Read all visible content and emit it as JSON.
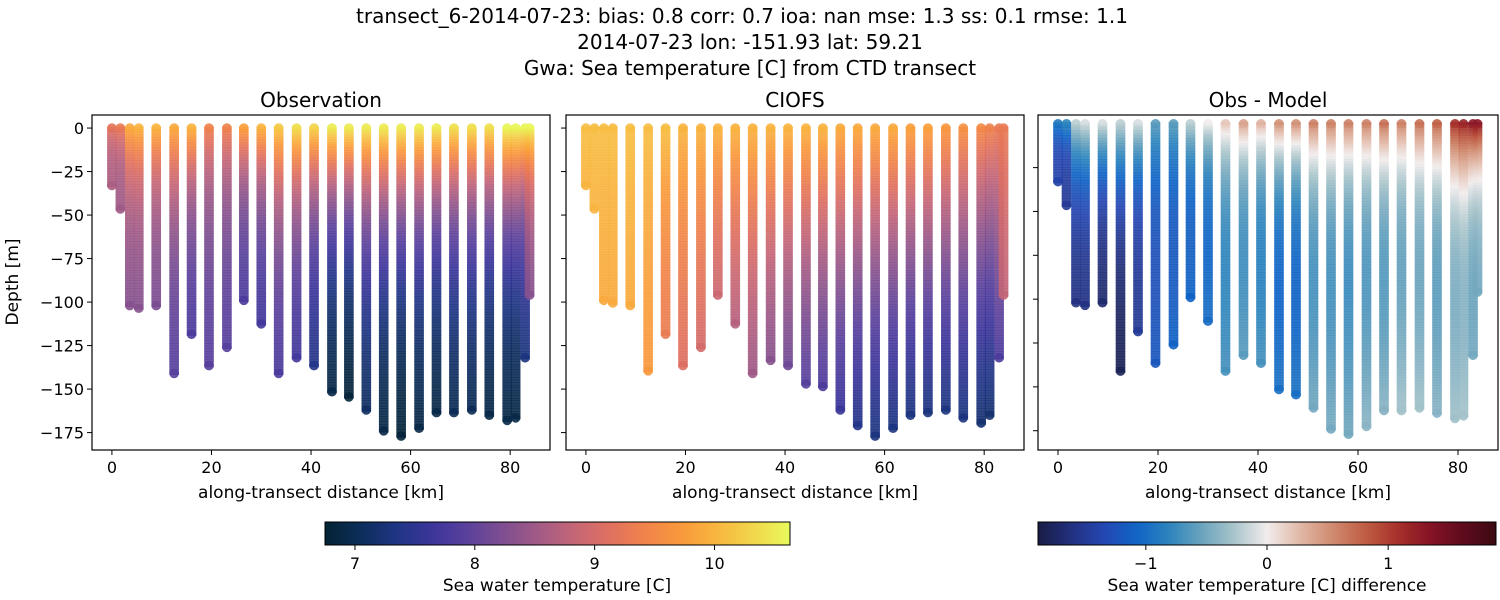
{
  "title_lines": [
    "transect_6-2014-07-23: bias: 0.8  corr: 0.7  ioa: nan  mse: 1.3  ss: 0.1  rmse: 1.1",
    "2014-07-23 lon: -151.93 lat: 59.21",
    "Gwa: Sea temperature [C] from CTD transect"
  ],
  "chart_data": [
    {
      "type": "scatter",
      "title": "Observation",
      "xlabel": "along-transect distance [km]",
      "ylabel": "Depth [m]",
      "xlim": [
        -4,
        88
      ],
      "ylim": [
        -185,
        7.5
      ],
      "xticks": [
        0,
        20,
        40,
        60,
        80
      ],
      "yticks": [
        0,
        -25,
        -50,
        -75,
        -100,
        -125,
        -150,
        -175
      ],
      "ytick_labels_shown": true,
      "colormap": "thermal",
      "color_range": [
        6.75,
        10.63
      ],
      "stations_km": [
        0,
        1.7,
        3.6,
        5.4,
        8.9,
        12.5,
        16,
        19.5,
        23.1,
        26.5,
        30,
        33.5,
        37.1,
        40.6,
        44.2,
        47.6,
        51.1,
        54.6,
        58.1,
        61.7,
        65.2,
        68.7,
        72.3,
        75.8,
        79.4,
        81.1,
        83,
        83.9
      ],
      "max_depth_m": [
        34,
        47,
        102,
        104,
        103,
        142,
        119,
        137,
        127,
        100,
        113,
        141,
        132,
        137,
        152,
        155,
        162,
        174,
        177,
        173,
        164,
        164,
        163,
        165,
        169,
        167,
        132,
        96
      ],
      "surface_temp_c": [
        9.2,
        9.3,
        9.9,
        10.0,
        10.0,
        9.9,
        10.0,
        9.4,
        9.4,
        9.8,
        10.0,
        10.2,
        10.4,
        10.3,
        10.5,
        10.5,
        10.5,
        10.5,
        10.5,
        10.5,
        10.5,
        10.4,
        10.4,
        10.4,
        10.6,
        10.6,
        10.6,
        10.6
      ],
      "bottom_temp_c": [
        8.6,
        8.5,
        8.3,
        8.3,
        8.2,
        7.9,
        7.8,
        7.9,
        7.9,
        7.8,
        7.7,
        7.8,
        7.7,
        7.4,
        6.9,
        6.8,
        7.1,
        6.9,
        6.8,
        6.9,
        6.9,
        7.0,
        7.0,
        6.9,
        6.9,
        6.9,
        7.3,
        8.3
      ]
    },
    {
      "type": "scatter",
      "title": "CIOFS",
      "xlabel": "along-transect distance [km]",
      "xlim": [
        -4,
        88
      ],
      "ylim": [
        -185,
        7.5
      ],
      "xticks": [
        0,
        20,
        40,
        60,
        80
      ],
      "yticks": [
        0,
        -25,
        -50,
        -75,
        -100,
        -125,
        -150,
        -175
      ],
      "ytick_labels_shown": false,
      "colormap": "thermal",
      "color_range": [
        6.75,
        10.63
      ],
      "stations_km": [
        0,
        1.7,
        3.6,
        5.4,
        8.9,
        12.5,
        16,
        19.5,
        23.1,
        26.5,
        30,
        33.5,
        37.1,
        40.6,
        44.2,
        47.6,
        51.1,
        54.6,
        58.1,
        61.7,
        65.2,
        68.7,
        72.3,
        75.8,
        79.4,
        81.1,
        83,
        83.9
      ],
      "max_depth_m": [
        34,
        47,
        100,
        101,
        103,
        140,
        119,
        137,
        127,
        97,
        113,
        141,
        134,
        137,
        147,
        149,
        163,
        171,
        177,
        173,
        165,
        164,
        163,
        167,
        170,
        165,
        132,
        96
      ],
      "surface_temp_c": [
        10.1,
        10.1,
        10.1,
        10.1,
        10.1,
        10.1,
        10.1,
        10.0,
        10.0,
        10.0,
        10.0,
        10.0,
        10.0,
        10.0,
        10.0,
        10.0,
        9.9,
        9.9,
        9.9,
        9.9,
        9.8,
        9.8,
        9.7,
        9.6,
        9.5,
        9.4,
        9.3,
        9.3
      ],
      "bottom_temp_c": [
        10.0,
        10.0,
        9.9,
        9.9,
        9.9,
        9.7,
        9.3,
        9.1,
        9.0,
        8.9,
        8.7,
        8.5,
        8.3,
        8.1,
        7.9,
        7.8,
        7.6,
        7.4,
        7.3,
        7.3,
        7.3,
        7.3,
        7.3,
        7.3,
        7.2,
        7.2,
        7.8,
        8.8
      ]
    },
    {
      "type": "scatter",
      "title": "Obs - Model",
      "xlabel": "along-transect distance [km]",
      "xlim": [
        -4,
        88
      ],
      "ylim": [
        -186,
        5
      ],
      "xticks": [
        0,
        20,
        40,
        60,
        80
      ],
      "yticks": [
        -25,
        -50,
        -75,
        -100,
        -125,
        -150,
        -175
      ],
      "ytick_labels_shown": false,
      "colormap": "balance",
      "color_range": [
        -1.89,
        1.89
      ]
    }
  ],
  "colorbars": [
    {
      "label": "Sea water temperature [C]",
      "range": [
        6.75,
        10.63
      ],
      "ticks": [
        7,
        8,
        9,
        10
      ],
      "colormap": "thermal"
    },
    {
      "label": "Sea water temperature [C] difference",
      "range": [
        -1.89,
        1.89
      ],
      "ticks": [
        -1,
        0,
        1
      ],
      "colormap": "balance"
    }
  ]
}
